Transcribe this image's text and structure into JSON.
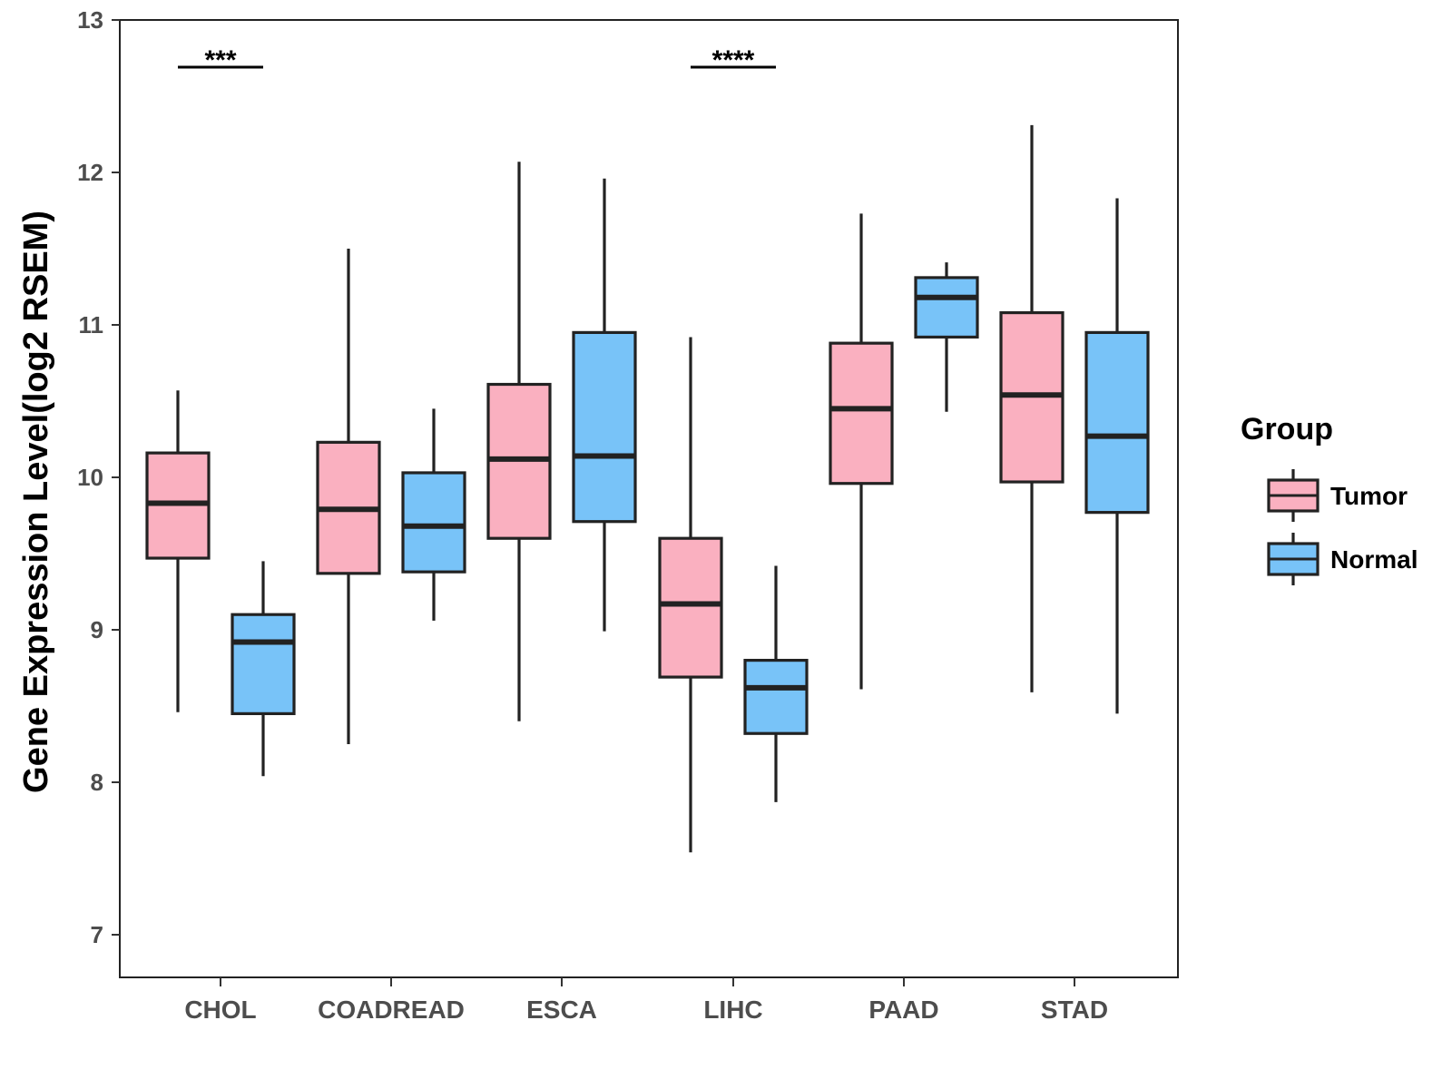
{
  "chart_data": {
    "type": "boxplot",
    "title": "",
    "xlabel": "",
    "ylabel": "Gene Expression Level(log2 RSEM)",
    "ylim": [
      6.72,
      13
    ],
    "yticks": [
      7,
      8,
      9,
      10,
      11,
      12,
      13
    ],
    "categories": [
      "CHOL",
      "COADREAD",
      "ESCA",
      "LIHC",
      "PAAD",
      "STAD"
    ],
    "legend": {
      "title": "Group",
      "position": "right",
      "entries": [
        {
          "name": "Tumor",
          "color": "#fab0c0"
        },
        {
          "name": "Normal",
          "color": "#78c3f8"
        }
      ]
    },
    "series": [
      {
        "name": "Tumor",
        "color": "#fab0c0",
        "boxes": [
          {
            "category": "CHOL",
            "min": 8.46,
            "q1": 9.47,
            "median": 9.83,
            "q3": 10.16,
            "max": 10.57
          },
          {
            "category": "COADREAD",
            "min": 8.25,
            "q1": 9.37,
            "median": 9.79,
            "q3": 10.23,
            "max": 11.5
          },
          {
            "category": "ESCA",
            "min": 8.4,
            "q1": 9.6,
            "median": 10.12,
            "q3": 10.61,
            "max": 12.07
          },
          {
            "category": "LIHC",
            "min": 7.54,
            "q1": 8.69,
            "median": 9.17,
            "q3": 9.6,
            "max": 10.92
          },
          {
            "category": "PAAD",
            "min": 8.61,
            "q1": 9.96,
            "median": 10.45,
            "q3": 10.88,
            "max": 11.73
          },
          {
            "category": "STAD",
            "min": 8.59,
            "q1": 9.97,
            "median": 10.54,
            "q3": 11.08,
            "max": 12.31
          }
        ]
      },
      {
        "name": "Normal",
        "color": "#78c3f8",
        "boxes": [
          {
            "category": "CHOL",
            "min": 8.04,
            "q1": 8.45,
            "median": 8.92,
            "q3": 9.1,
            "max": 9.45
          },
          {
            "category": "COADREAD",
            "min": 9.06,
            "q1": 9.38,
            "median": 9.68,
            "q3": 10.03,
            "max": 10.45
          },
          {
            "category": "ESCA",
            "min": 8.99,
            "q1": 9.71,
            "median": 10.14,
            "q3": 10.95,
            "max": 11.96
          },
          {
            "category": "LIHC",
            "min": 7.87,
            "q1": 8.32,
            "median": 8.62,
            "q3": 8.8,
            "max": 9.42
          },
          {
            "category": "PAAD",
            "min": 10.43,
            "q1": 10.92,
            "median": 11.18,
            "q3": 11.31,
            "max": 11.41
          },
          {
            "category": "STAD",
            "min": 8.45,
            "q1": 9.77,
            "median": 10.27,
            "q3": 10.95,
            "max": 11.83
          }
        ]
      }
    ],
    "significance": [
      {
        "category": "CHOL",
        "label": "***"
      },
      {
        "category": "LIHC",
        "label": "****"
      }
    ]
  }
}
